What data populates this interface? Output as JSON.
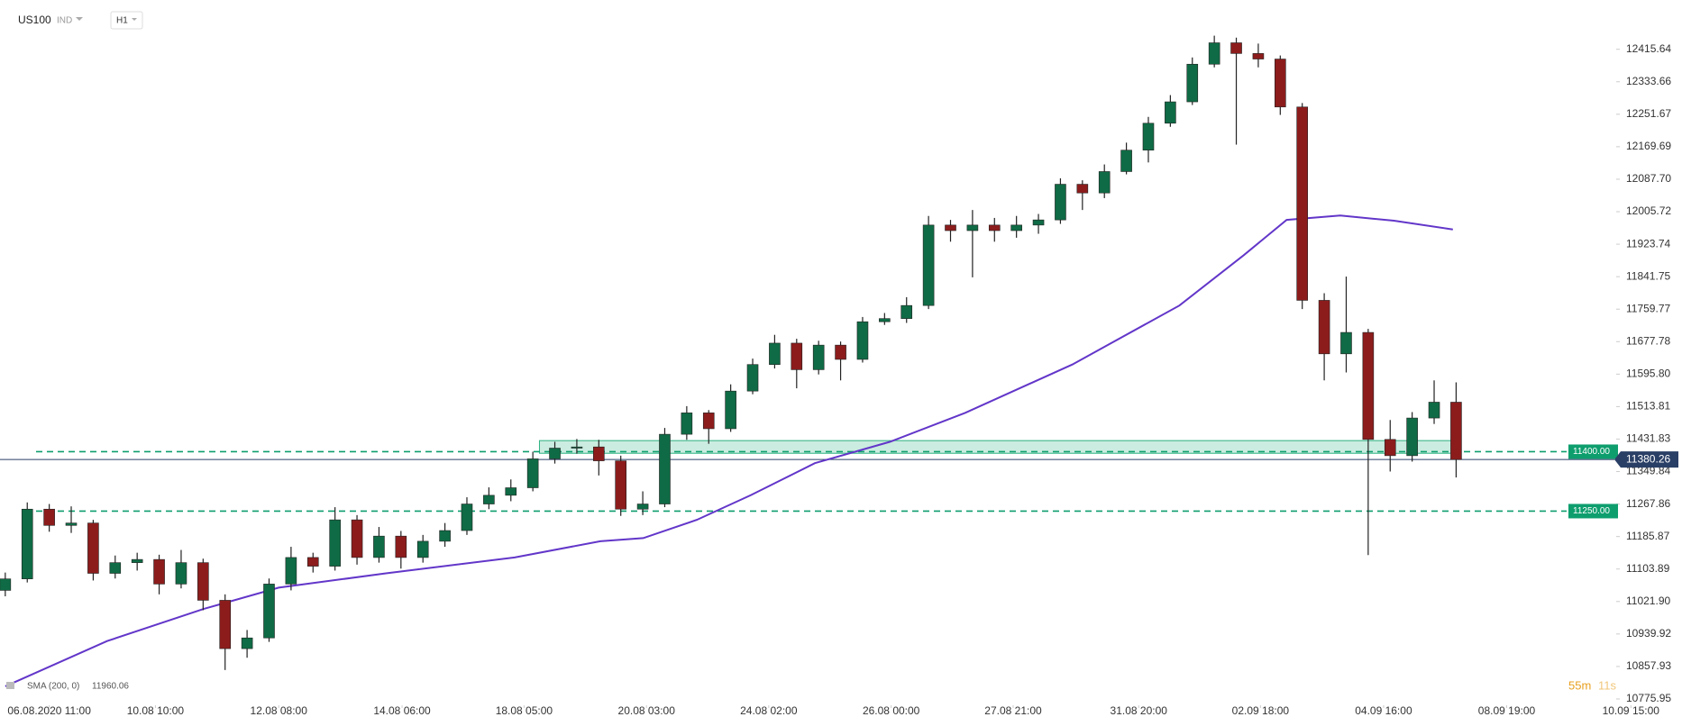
{
  "chart_data": {
    "type": "candlestick",
    "title": "US100",
    "market": "IND",
    "timeframe": "H1",
    "up_color": "#0f6b45",
    "down_color": "#8c1c1c",
    "x": [
      0,
      1,
      2,
      3,
      4,
      5,
      6,
      7,
      8,
      9,
      10,
      11,
      12,
      13,
      14,
      15,
      16,
      17,
      18,
      19,
      20,
      21,
      22,
      23,
      24,
      25,
      26,
      27,
      28,
      29,
      30,
      31,
      32,
      33,
      34,
      35,
      36,
      37,
      38,
      39,
      40,
      41,
      42,
      43,
      44,
      45,
      46,
      47,
      48,
      49,
      50,
      51,
      52,
      53,
      54,
      55,
      56,
      57,
      58,
      59,
      60,
      61,
      62,
      63,
      64,
      65,
      66
    ],
    "open": [
      11050,
      11079,
      11255,
      11214,
      11220,
      11093,
      11120,
      11128,
      11066,
      11120,
      11025,
      10903,
      10930,
      11066,
      11133,
      11111,
      11228,
      11133,
      11187,
      11133,
      11174,
      11201,
      11268,
      11290,
      11309,
      11382,
      11409,
      11412,
      11377,
      11255,
      11268,
      11444,
      11498,
      11458,
      11553,
      11620,
      11674,
      11607,
      11669,
      11633,
      11728,
      11736,
      11769,
      11972,
      11958,
      11972,
      11958,
      11972,
      11985,
      12075,
      12053,
      12107,
      12161,
      12229,
      12283,
      12378,
      12432,
      12405,
      12391,
      12270,
      11782,
      11647,
      11701,
      11431,
      11390,
      11485,
      11525
    ],
    "high": [
      11095,
      11272,
      11268,
      11262,
      11228,
      11138,
      11145,
      11140,
      11152,
      11130,
      11040,
      10950,
      11080,
      11160,
      11145,
      11260,
      11240,
      11210,
      11200,
      11190,
      11220,
      11285,
      11310,
      11330,
      11400,
      11425,
      11432,
      11430,
      11390,
      11300,
      11460,
      11515,
      11505,
      11570,
      11635,
      11695,
      11685,
      11680,
      11678,
      11740,
      11750,
      11790,
      11995,
      11985,
      12010,
      11990,
      11995,
      12000,
      12090,
      12085,
      12125,
      12180,
      12245,
      12300,
      12395,
      12450,
      12445,
      12430,
      12400,
      12280,
      11800,
      11842,
      11710,
      11480,
      11500,
      11580,
      11575
    ],
    "low": [
      11035,
      11070,
      11198,
      11195,
      11075,
      11080,
      11100,
      11040,
      11055,
      11000,
      10849,
      10880,
      10920,
      11050,
      11095,
      11100,
      11115,
      11120,
      11105,
      11120,
      11160,
      11190,
      11255,
      11275,
      11300,
      11370,
      11395,
      11340,
      11238,
      11240,
      11260,
      11430,
      11420,
      11450,
      11545,
      11610,
      11560,
      11595,
      11580,
      11625,
      11720,
      11725,
      11760,
      11930,
      11840,
      11930,
      11940,
      11950,
      11975,
      12010,
      12040,
      12100,
      12130,
      12220,
      12275,
      12370,
      12175,
      12370,
      12250,
      11760,
      11580,
      11600,
      11139,
      11350,
      11375,
      11470,
      11335
    ],
    "close": [
      11079,
      11255,
      11214,
      11220,
      11093,
      11120,
      11128,
      11066,
      11120,
      11025,
      10903,
      10930,
      11066,
      11133,
      11111,
      11228,
      11133,
      11187,
      11133,
      11174,
      11201,
      11268,
      11290,
      11309,
      11382,
      11409,
      11412,
      11377,
      11255,
      11268,
      11444,
      11498,
      11458,
      11553,
      11620,
      11674,
      11607,
      11669,
      11633,
      11728,
      11736,
      11769,
      11972,
      11958,
      11972,
      11958,
      11972,
      11985,
      12075,
      12053,
      12107,
      12161,
      12229,
      12283,
      12378,
      12432,
      12405,
      12391,
      12270,
      11782,
      11647,
      11701,
      11431,
      11390,
      11485,
      11525,
      11380.26
    ],
    "sma": {
      "name": "SMA (200, 0)",
      "last_value": 11960.06,
      "color": "#6236c9",
      "x": [
        0,
        4.63,
        9.02,
        12.44,
        17.32,
        23.17,
        27.07,
        29.02,
        31.46,
        33.9,
        36.83,
        40.24,
        43.66,
        48.54,
        53.41,
        56.34,
        58.29,
        60.73,
        63.17,
        65.85
      ],
      "values": [
        10808,
        10922,
        11003,
        11057,
        11093,
        11133,
        11174,
        11182,
        11228,
        11290,
        11371,
        11425,
        11498,
        11620,
        11769,
        11896,
        11985,
        11996,
        11983,
        11961
      ]
    },
    "zone": {
      "color": "#2fb383",
      "x": [
        24.3,
        66.2
      ],
      "values": [
        11396,
        11428
      ]
    },
    "levels": [
      {
        "value": 11400,
        "label": "11400.00",
        "color": "#0e9e6e"
      },
      {
        "value": 11250,
        "label": "11250.00",
        "color": "#0e9e6e"
      }
    ],
    "price_line_color": "#2a3f66",
    "countdown": [
      "55m",
      "11s"
    ],
    "xlim": [
      -0.24,
      73.2
    ],
    "ylim": [
      10760,
      12540
    ],
    "xticks": [
      {
        "value": 2.0,
        "label": "06.08.2020  11:00"
      },
      {
        "value": 6.83,
        "label": "10.08  10:00"
      },
      {
        "value": 12.44,
        "label": "12.08  08:00"
      },
      {
        "value": 18.05,
        "label": "14.08  06:00"
      },
      {
        "value": 23.6,
        "label": "18.08  05:00"
      },
      {
        "value": 29.17,
        "label": "20.08  03:00"
      },
      {
        "value": 34.73,
        "label": "24.08  02:00"
      },
      {
        "value": 40.3,
        "label": "26.08  00:00"
      },
      {
        "value": 45.85,
        "label": "27.08  21:00"
      },
      {
        "value": 51.56,
        "label": "31.08  20:00"
      },
      {
        "value": 57.1,
        "label": "02.09  18:00"
      },
      {
        "value": 62.7,
        "label": "04.09  16:00"
      },
      {
        "value": 68.3,
        "label": "08.09  19:00"
      },
      {
        "value": 73.95,
        "label": "10.09  15:00"
      }
    ],
    "yticks": [
      12415.64,
      12333.66,
      12251.67,
      12169.69,
      {
        "value": 12087.7,
        "label": "12087.70"
      },
      12005.72,
      11923.74,
      11841.75,
      11759.77,
      11677.78,
      {
        "value": 11595.8,
        "label": "11595.80"
      },
      11513.81,
      11431.83,
      11349.84,
      11267.86,
      11185.87,
      11103.89,
      {
        "value": 11021.9,
        "label": "11021.90"
      },
      10939.92,
      10857.93,
      10775.95
    ]
  }
}
